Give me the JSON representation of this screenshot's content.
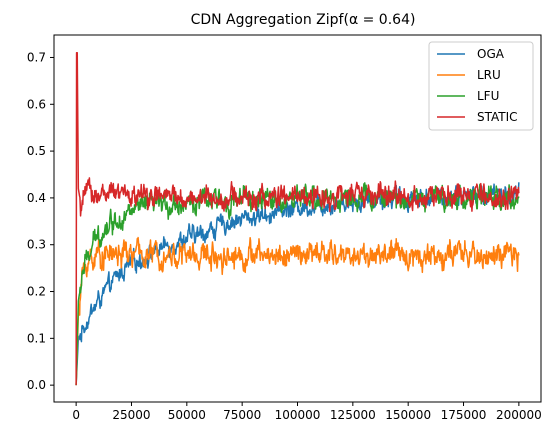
{
  "chart_data": {
    "type": "line",
    "title": "CDN Aggregation Zipf(α = 0.64)",
    "xlabel": "",
    "ylabel": "",
    "xlim": [
      -10000,
      210000
    ],
    "ylim": [
      -0.036,
      0.748
    ],
    "xticks": [
      0,
      25000,
      50000,
      75000,
      100000,
      125000,
      150000,
      175000,
      200000
    ],
    "yticks": [
      0.0,
      0.1,
      0.2,
      0.3,
      0.4,
      0.5,
      0.6,
      0.7
    ],
    "grid": false,
    "legend_position": "top-right",
    "series": [
      {
        "name": "OGA",
        "color": "#1f77b4",
        "noise": 0.012,
        "points": [
          [
            0,
            0.0
          ],
          [
            1000,
            0.1
          ],
          [
            5000,
            0.14
          ],
          [
            10000,
            0.18
          ],
          [
            15000,
            0.21
          ],
          [
            20000,
            0.24
          ],
          [
            25000,
            0.26
          ],
          [
            30000,
            0.27
          ],
          [
            35000,
            0.285
          ],
          [
            40000,
            0.295
          ],
          [
            45000,
            0.305
          ],
          [
            50000,
            0.315
          ],
          [
            55000,
            0.32
          ],
          [
            60000,
            0.33
          ],
          [
            65000,
            0.34
          ],
          [
            70000,
            0.35
          ],
          [
            75000,
            0.355
          ],
          [
            80000,
            0.36
          ],
          [
            85000,
            0.365
          ],
          [
            90000,
            0.37
          ],
          [
            95000,
            0.375
          ],
          [
            100000,
            0.38
          ],
          [
            110000,
            0.385
          ],
          [
            120000,
            0.39
          ],
          [
            130000,
            0.395
          ],
          [
            150000,
            0.4
          ],
          [
            175000,
            0.405
          ],
          [
            200000,
            0.405
          ]
        ]
      },
      {
        "name": "LRU",
        "color": "#ff7f0e",
        "noise": 0.016,
        "points": [
          [
            0,
            0.0
          ],
          [
            1000,
            0.15
          ],
          [
            3000,
            0.24
          ],
          [
            6000,
            0.27
          ],
          [
            10000,
            0.28
          ],
          [
            25000,
            0.28
          ],
          [
            50000,
            0.278
          ],
          [
            75000,
            0.277
          ],
          [
            100000,
            0.279
          ],
          [
            125000,
            0.278
          ],
          [
            150000,
            0.278
          ],
          [
            175000,
            0.277
          ],
          [
            200000,
            0.275
          ]
        ]
      },
      {
        "name": "LFU",
        "color": "#2ca02c",
        "noise": 0.014,
        "points": [
          [
            0,
            0.0
          ],
          [
            1000,
            0.18
          ],
          [
            3000,
            0.24
          ],
          [
            6000,
            0.28
          ],
          [
            10000,
            0.32
          ],
          [
            15000,
            0.345
          ],
          [
            20000,
            0.36
          ],
          [
            25000,
            0.37
          ],
          [
            30000,
            0.38
          ],
          [
            40000,
            0.385
          ],
          [
            50000,
            0.39
          ],
          [
            75000,
            0.395
          ],
          [
            100000,
            0.397
          ],
          [
            125000,
            0.4
          ],
          [
            150000,
            0.4
          ],
          [
            175000,
            0.4
          ],
          [
            200000,
            0.4
          ]
        ]
      },
      {
        "name": "STATIC",
        "color": "#d62728",
        "noise": 0.014,
        "points": [
          [
            0,
            0.0
          ],
          [
            200,
            0.71
          ],
          [
            500,
            0.71
          ],
          [
            1000,
            0.42
          ],
          [
            2000,
            0.39
          ],
          [
            5000,
            0.41
          ],
          [
            25000,
            0.405
          ],
          [
            50000,
            0.4
          ],
          [
            75000,
            0.4
          ],
          [
            100000,
            0.4
          ],
          [
            125000,
            0.405
          ],
          [
            150000,
            0.402
          ],
          [
            175000,
            0.402
          ],
          [
            200000,
            0.4
          ]
        ]
      }
    ]
  }
}
